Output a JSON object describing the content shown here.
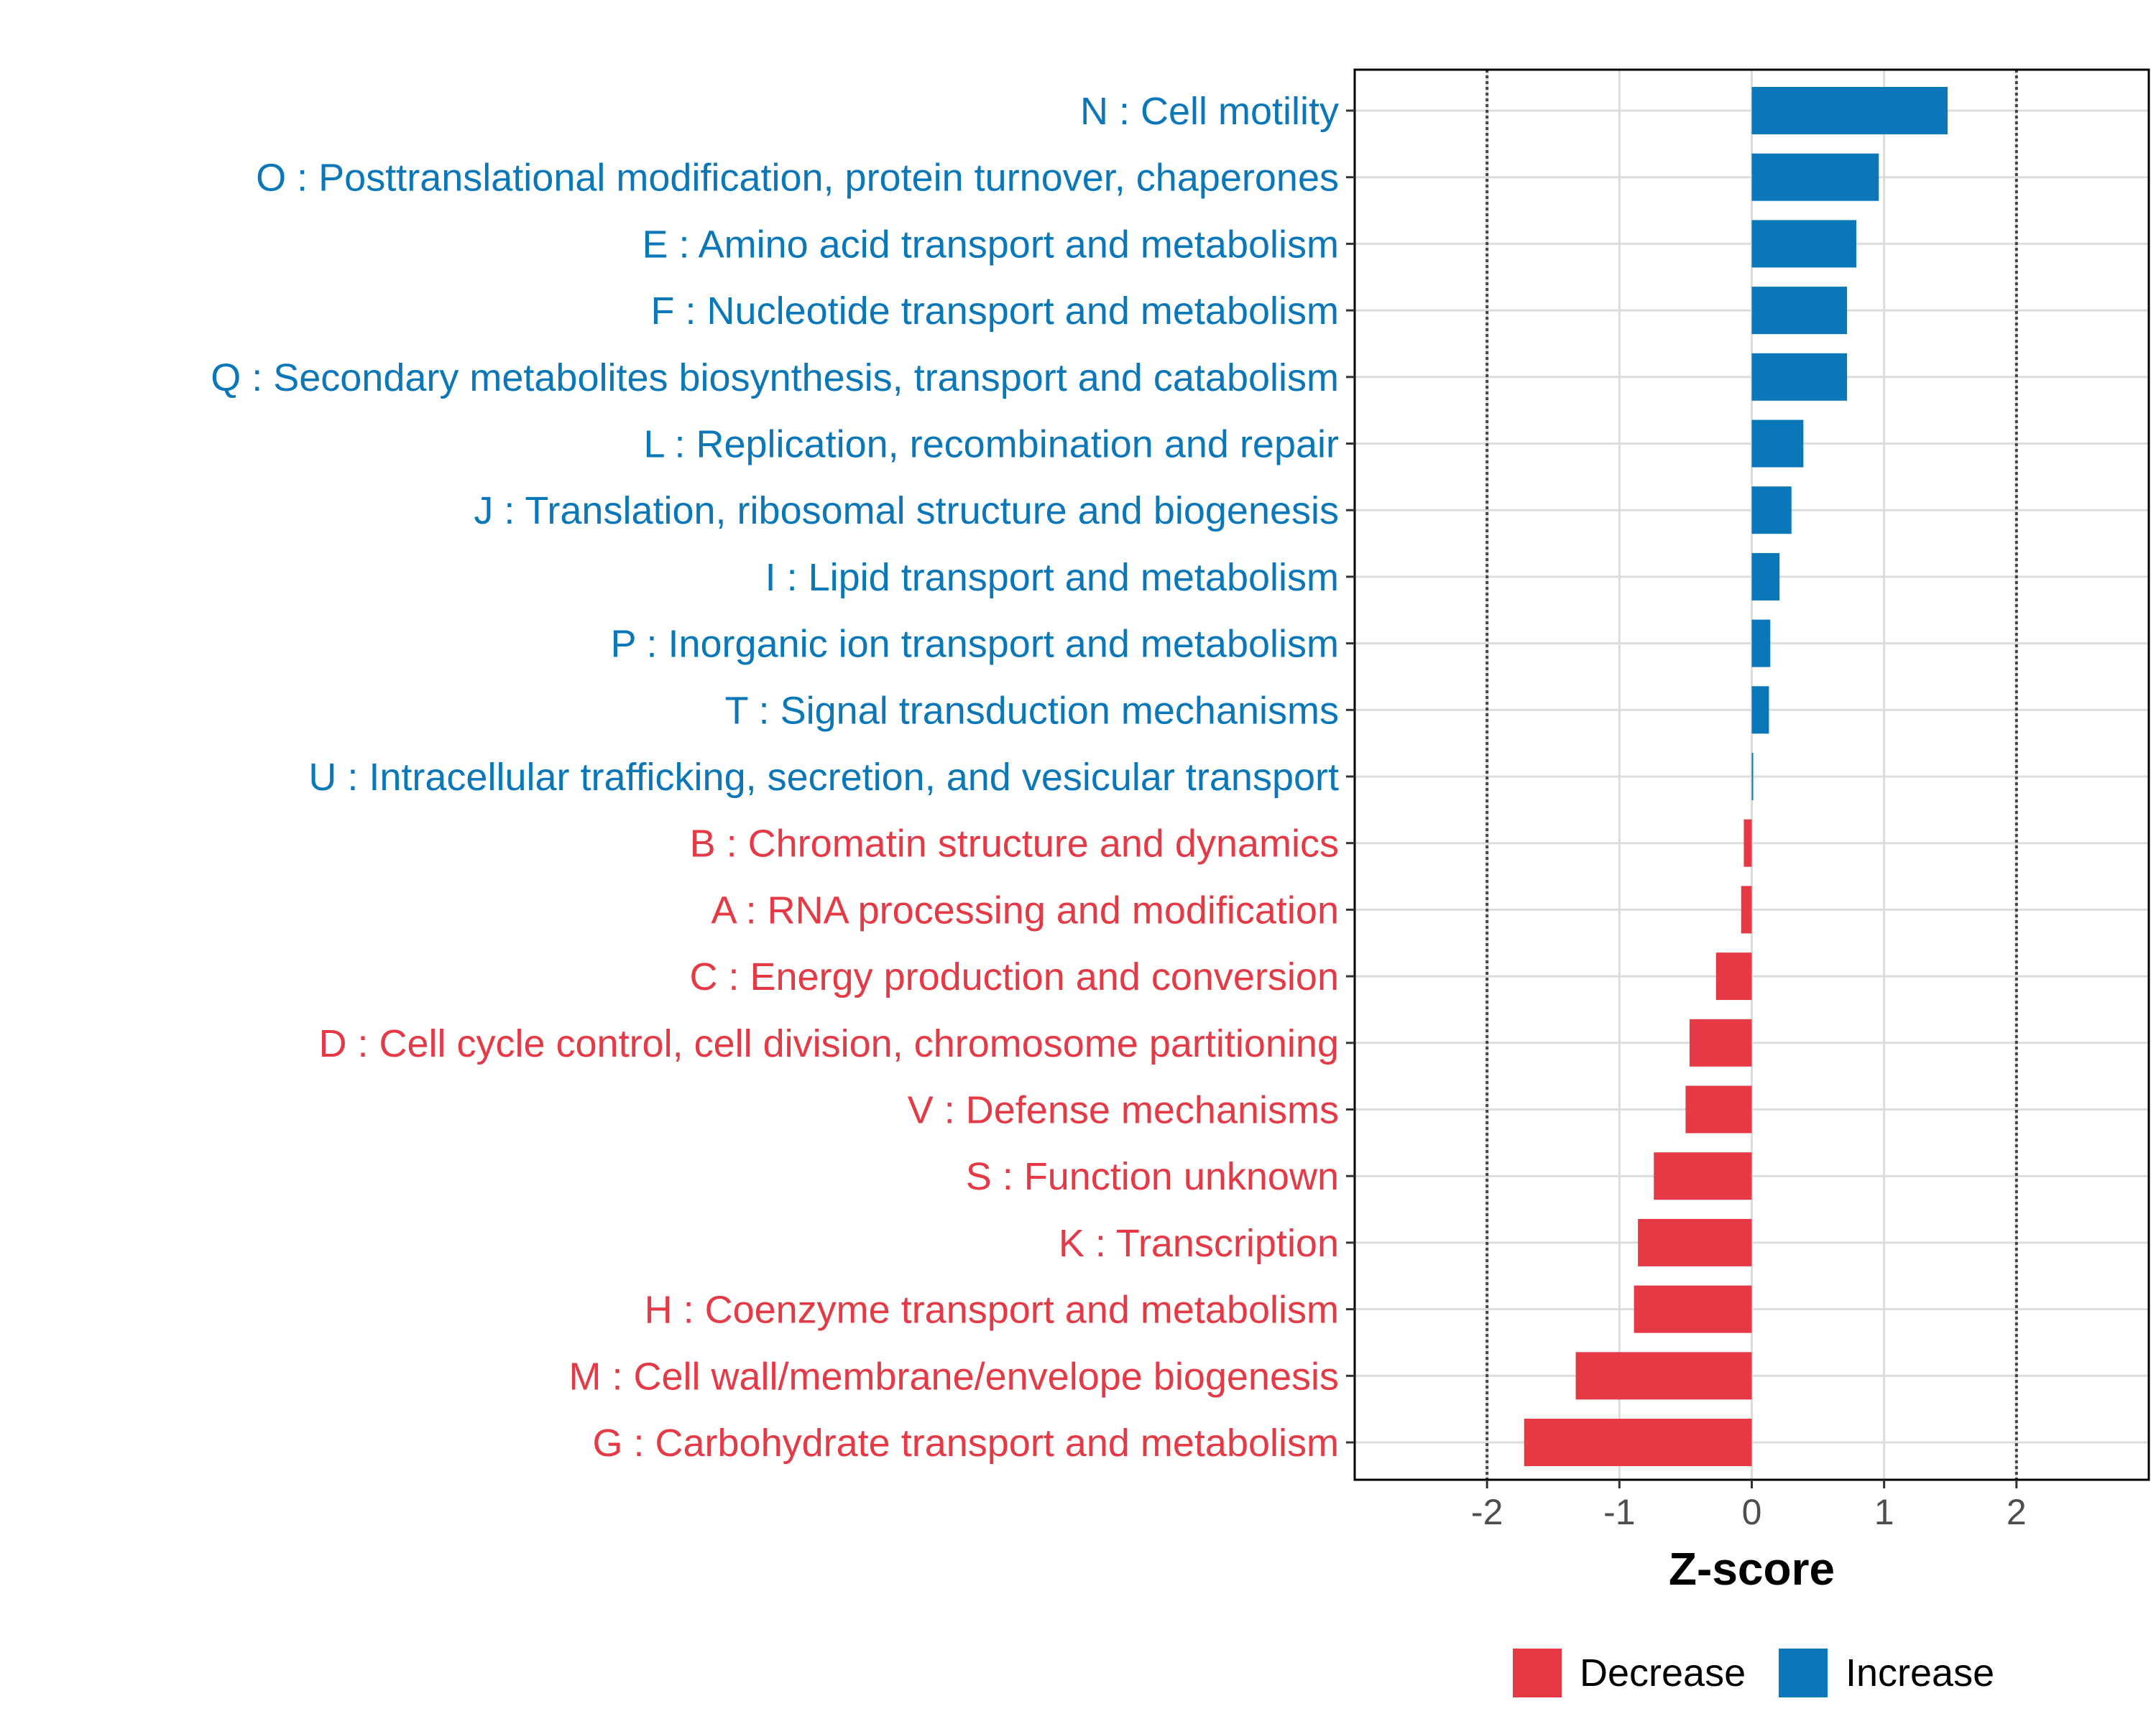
{
  "chart_data": {
    "type": "bar",
    "orientation": "horizontal",
    "xlabel": "Z-score",
    "xlim": [
      -3,
      3
    ],
    "xticks": [
      -2,
      -1,
      0,
      1,
      2
    ],
    "xtick_labels": [
      "-2",
      "-1",
      "0",
      "1",
      "2"
    ],
    "reference_lines": [
      -2,
      2
    ],
    "grid": true,
    "legend_position": "bottom",
    "colors": {
      "Decrease": "#E63946",
      "Increase": "#0A77B8"
    },
    "legend": [
      {
        "name": "Decrease",
        "color": "#E63946"
      },
      {
        "name": "Increase",
        "color": "#0A77B8"
      }
    ],
    "categories": [
      {
        "label": "N : Cell motility",
        "value": 1.48,
        "group": "Increase"
      },
      {
        "label": "O : Posttranslational modification, protein turnover, chaperones",
        "value": 0.96,
        "group": "Increase"
      },
      {
        "label": "E : Amino acid transport and metabolism",
        "value": 0.79,
        "group": "Increase"
      },
      {
        "label": "F : Nucleotide transport and metabolism",
        "value": 0.72,
        "group": "Increase"
      },
      {
        "label": "Q : Secondary metabolites biosynthesis, transport and catabolism",
        "value": 0.72,
        "group": "Increase"
      },
      {
        "label": "L : Replication, recombination and repair",
        "value": 0.39,
        "group": "Increase"
      },
      {
        "label": "J : Translation, ribosomal structure and biogenesis",
        "value": 0.3,
        "group": "Increase"
      },
      {
        "label": "I : Lipid transport and metabolism",
        "value": 0.21,
        "group": "Increase"
      },
      {
        "label": "P : Inorganic ion transport and metabolism",
        "value": 0.14,
        "group": "Increase"
      },
      {
        "label": "T : Signal transduction mechanisms",
        "value": 0.13,
        "group": "Increase"
      },
      {
        "label": "U : Intracellular trafficking, secretion, and vesicular transport",
        "value": 0.01,
        "group": "Increase"
      },
      {
        "label": "B : Chromatin structure and dynamics",
        "value": -0.06,
        "group": "Decrease"
      },
      {
        "label": "A : RNA processing and modification",
        "value": -0.08,
        "group": "Decrease"
      },
      {
        "label": "C : Energy production and conversion",
        "value": -0.27,
        "group": "Decrease"
      },
      {
        "label": "D : Cell cycle control, cell division, chromosome partitioning",
        "value": -0.47,
        "group": "Decrease"
      },
      {
        "label": "V : Defense mechanisms",
        "value": -0.5,
        "group": "Decrease"
      },
      {
        "label": "S : Function unknown",
        "value": -0.74,
        "group": "Decrease"
      },
      {
        "label": "K : Transcription",
        "value": -0.86,
        "group": "Decrease"
      },
      {
        "label": "H : Coenzyme transport and metabolism",
        "value": -0.89,
        "group": "Decrease"
      },
      {
        "label": "M : Cell wall/membrane/envelope biogenesis",
        "value": -1.33,
        "group": "Decrease"
      },
      {
        "label": "G : Carbohydrate transport and metabolism",
        "value": -1.72,
        "group": "Decrease"
      }
    ]
  }
}
